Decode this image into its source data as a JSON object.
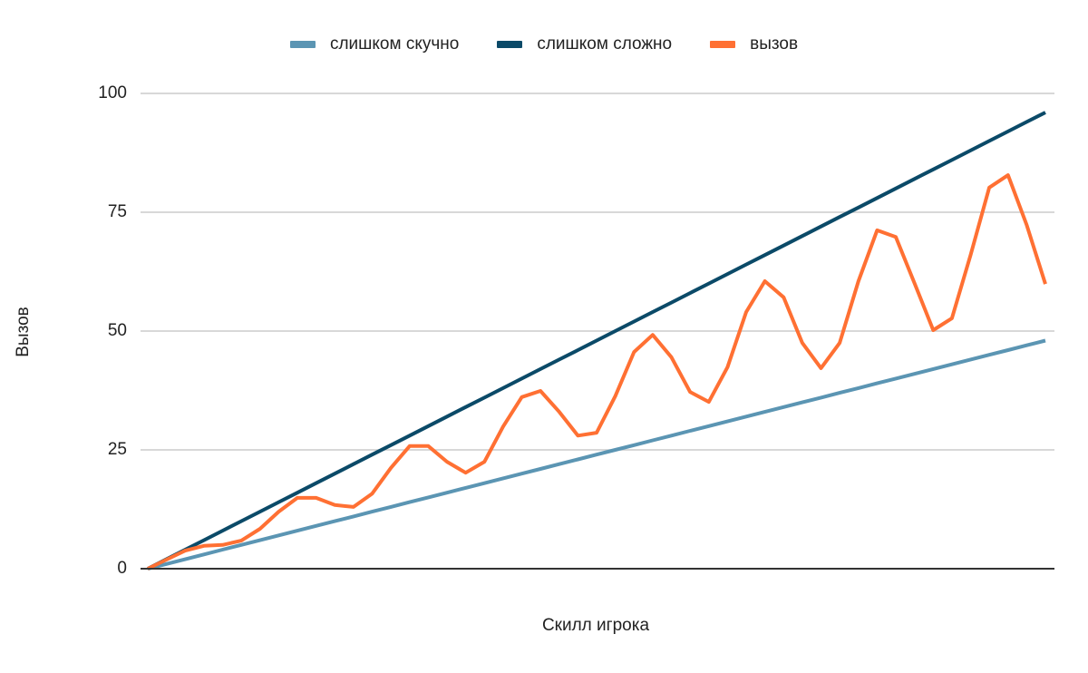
{
  "chart_data": {
    "type": "line",
    "title": "",
    "xlabel": "Скилл игрока",
    "ylabel": "Вызов",
    "ylim": [
      0,
      100
    ],
    "yticks": [
      0,
      25,
      50,
      75,
      100
    ],
    "grid": true,
    "legend_position": "top",
    "x": [
      0,
      1,
      2,
      3,
      4,
      5,
      6,
      7,
      8,
      9,
      10,
      11,
      12,
      13,
      14,
      15,
      16,
      17,
      18,
      19,
      20,
      21,
      22,
      23,
      24,
      25,
      26,
      27,
      28,
      29,
      30,
      31,
      32,
      33,
      34,
      35,
      36,
      37,
      38,
      39,
      40,
      41,
      42,
      43,
      44,
      45,
      46,
      47,
      48
    ],
    "series": [
      {
        "name": "слишком скучно",
        "color": "#5b95b3",
        "values": [
          0,
          1,
          2,
          3,
          4,
          5,
          6,
          7,
          8,
          9,
          10,
          11,
          12,
          13,
          14,
          15,
          16,
          17,
          18,
          19,
          20,
          21,
          22,
          23,
          24,
          25,
          26,
          27,
          28,
          29,
          30,
          31,
          32,
          33,
          34,
          35,
          36,
          37,
          38,
          39,
          40,
          41,
          42,
          43,
          44,
          45,
          46,
          47,
          48
        ]
      },
      {
        "name": "слишком сложно",
        "color": "#0b4a68",
        "values": [
          0,
          2,
          4,
          6,
          8,
          10,
          12,
          14,
          16,
          18,
          20,
          22,
          24,
          26,
          28,
          30,
          32,
          34,
          36,
          38,
          40,
          42,
          44,
          46,
          48,
          50,
          52,
          54,
          56,
          58,
          60,
          62,
          64,
          66,
          68,
          70,
          72,
          74,
          76,
          78,
          80,
          82,
          84,
          86,
          88,
          90,
          92,
          94,
          96
        ]
      },
      {
        "name": "вызов",
        "color": "#ff7033",
        "values": [
          0,
          1.9,
          3.8,
          4.8,
          5.0,
          5.9,
          8.4,
          12.0,
          14.9,
          14.9,
          13.4,
          13.0,
          15.8,
          21.2,
          25.8,
          25.8,
          22.5,
          20.2,
          22.5,
          29.9,
          36.1,
          37.4,
          33.0,
          28.0,
          28.6,
          36.3,
          45.6,
          49.2,
          44.5,
          37.2,
          35.1,
          42.4,
          54.0,
          60.5,
          57.1,
          47.5,
          42.2,
          47.5,
          60.5,
          71.2,
          69.8,
          60.1,
          50.2,
          52.7,
          66.0,
          80.2,
          82.8,
          72.3,
          59.9
        ]
      }
    ]
  },
  "legend": {
    "items": [
      {
        "label": "слишком скучно",
        "color": "#5b95b3"
      },
      {
        "label": "слишком сложно",
        "color": "#0b4a68"
      },
      {
        "label": "вызов",
        "color": "#ff7033"
      }
    ]
  },
  "axes": {
    "y_tick_labels": [
      "100",
      "75",
      "50",
      "25",
      "0"
    ],
    "y_title": "Вызов",
    "x_title": "Скилл игрока"
  }
}
